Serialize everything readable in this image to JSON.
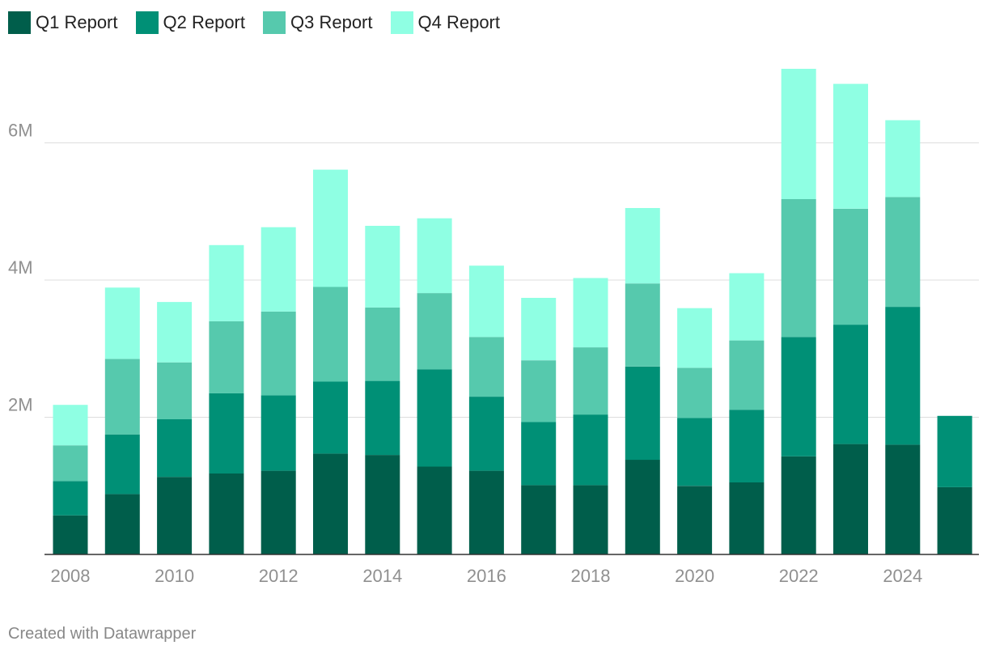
{
  "chart_data": {
    "type": "bar",
    "stacked": true,
    "categories": [
      "2008",
      "2009",
      "2010",
      "2011",
      "2012",
      "2013",
      "2014",
      "2015",
      "2016",
      "2017",
      "2018",
      "2019",
      "2020",
      "2021",
      "2022",
      "2023",
      "2024",
      "2025"
    ],
    "x_tick_labels": [
      "2008",
      "2010",
      "2012",
      "2014",
      "2016",
      "2018",
      "2020",
      "2022",
      "2024"
    ],
    "y_ticks": [
      {
        "value": 2000000,
        "label": "2M"
      },
      {
        "value": 4000000,
        "label": "4M"
      },
      {
        "value": 6000000,
        "label": "6M"
      }
    ],
    "ylim": [
      0,
      7500000
    ],
    "grid": true,
    "legend_position": "top-left",
    "series": [
      {
        "name": "Q1 Report",
        "color": "#005e4b",
        "values": [
          570000,
          880000,
          1130000,
          1180000,
          1220000,
          1470000,
          1450000,
          1280000,
          1220000,
          1010000,
          1010000,
          1380000,
          1000000,
          1050000,
          1430000,
          1610000,
          1600000,
          980000
        ]
      },
      {
        "name": "Q2 Report",
        "color": "#009076",
        "values": [
          500000,
          870000,
          840000,
          1170000,
          1100000,
          1050000,
          1080000,
          1420000,
          1080000,
          920000,
          1030000,
          1360000,
          990000,
          1060000,
          1740000,
          1740000,
          2010000,
          1040000
        ]
      },
      {
        "name": "Q3 Report",
        "color": "#56c9ad",
        "values": [
          520000,
          1100000,
          830000,
          1050000,
          1220000,
          1380000,
          1070000,
          1110000,
          870000,
          900000,
          980000,
          1210000,
          730000,
          1010000,
          2010000,
          1690000,
          1600000,
          0
        ]
      },
      {
        "name": "Q4 Report",
        "color": "#8fffe3",
        "values": [
          590000,
          1040000,
          880000,
          1110000,
          1230000,
          1710000,
          1190000,
          1090000,
          1040000,
          910000,
          1010000,
          1100000,
          870000,
          980000,
          1900000,
          1820000,
          1120000,
          0
        ]
      }
    ]
  },
  "credit": "Created with Datawrapper"
}
